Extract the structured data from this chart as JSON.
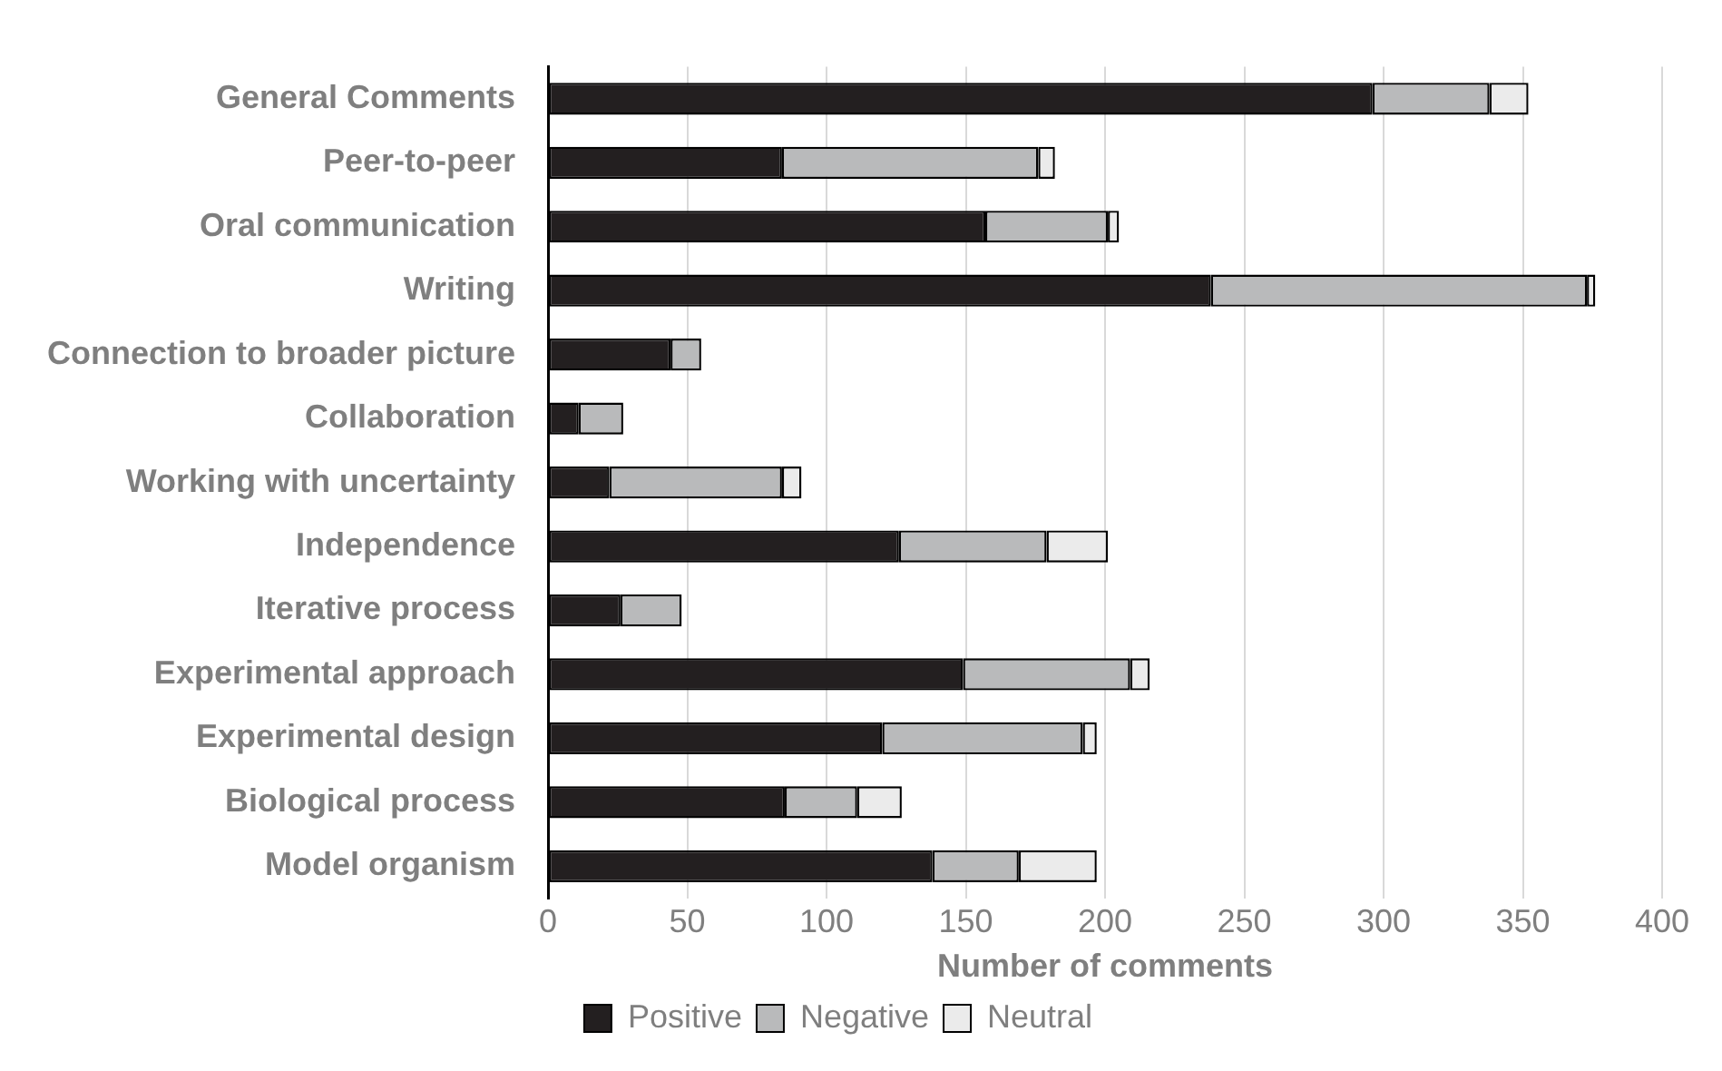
{
  "chart_data": {
    "type": "bar",
    "orientation": "horizontal",
    "stacked": true,
    "xlabel": "Number of comments",
    "categories": [
      "General Comments",
      "Peer-to-peer",
      "Oral communication",
      "Writing",
      "Connection to broader picture",
      "Collaboration",
      "Working with uncertainty",
      "Independence",
      "Iterative process",
      "Experimental approach",
      "Experimental design",
      "Biological process",
      "Model organism"
    ],
    "series": [
      {
        "name": "Positive",
        "color": "#231f20",
        "values": [
          296,
          84,
          157,
          238,
          44,
          11,
          22,
          126,
          26,
          149,
          120,
          85,
          138
        ]
      },
      {
        "name": "Negative",
        "color": "#b9babb",
        "values": [
          42,
          92,
          44,
          135,
          11,
          16,
          62,
          53,
          22,
          60,
          72,
          26,
          31
        ]
      },
      {
        "name": "Neutral",
        "color": "#ebebeb",
        "values": [
          14,
          6,
          4,
          3,
          0,
          0,
          7,
          22,
          0,
          7,
          5,
          16,
          28
        ]
      }
    ],
    "xlim": [
      0,
      400
    ],
    "xticks": [
      0,
      50,
      100,
      150,
      200,
      250,
      300,
      350,
      400
    ],
    "grid": "x",
    "legend": "bottom"
  }
}
